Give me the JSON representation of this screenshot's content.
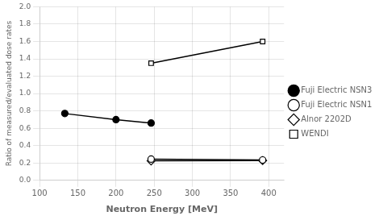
{
  "chart_data": {
    "type": "line",
    "xlabel": "Neutron Energy [MeV]",
    "ylabel": "Ratio of measured/evaluated dose rates",
    "xlim": [
      100,
      420
    ],
    "ylim": [
      0.0,
      2.0
    ],
    "xticks": [
      100,
      150,
      200,
      250,
      300,
      350,
      400
    ],
    "yticks": [
      {
        "value": 0.0,
        "label": "0.0"
      },
      0.2,
      0.4,
      0.6,
      0.8,
      {
        "value": 1.0,
        "label": "1.0"
      },
      1.2,
      1.4,
      1.6,
      1.8,
      {
        "value": 2.0,
        "label": "2.0"
      }
    ],
    "grid": true,
    "legend": "right",
    "series": [
      {
        "name": "Fuji Electric NSN3",
        "color": "black",
        "marker": "circle",
        "x": [
          133,
          200,
          246
        ],
        "values": [
          0.77,
          0.7,
          0.66
        ]
      },
      {
        "name": "Fuji Electric NSN1",
        "color": "black",
        "marker": "circle_open",
        "x": [
          246,
          392
        ],
        "values": [
          0.245,
          0.235
        ]
      },
      {
        "name": "Alnor 2202D",
        "color": "black",
        "marker": "diamond_open",
        "x": [
          246,
          392
        ],
        "values": [
          0.225,
          0.228
        ]
      },
      {
        "name": "WENDI",
        "color": "black",
        "marker": "square_open",
        "x": [
          246,
          392
        ],
        "values": [
          1.35,
          1.6
        ]
      }
    ]
  }
}
